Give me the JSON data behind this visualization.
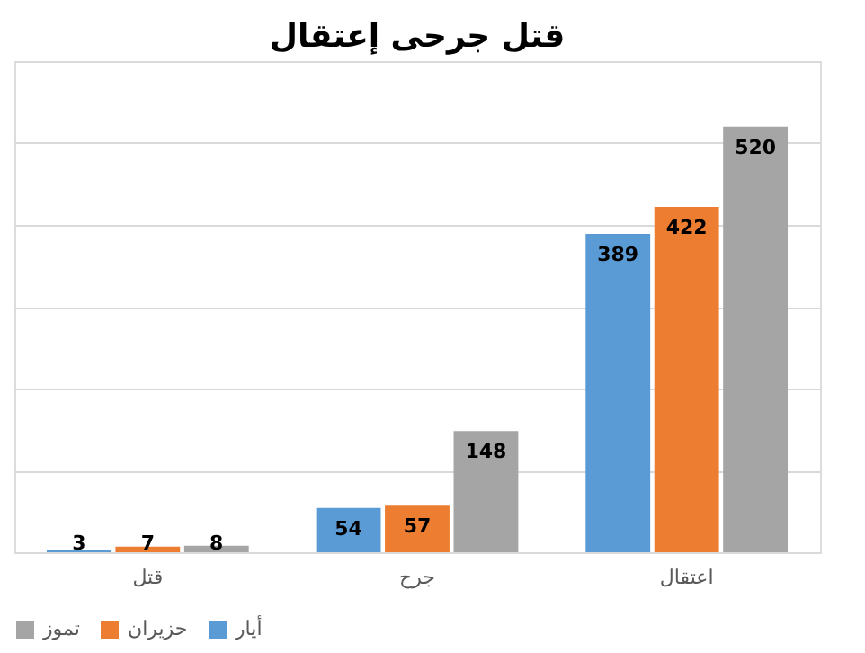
{
  "chart_data": {
    "type": "bar",
    "title": "قتل جرحى إعتقال",
    "categories": [
      "قتل",
      "جرح",
      "اعتقال"
    ],
    "series": [
      {
        "name": "أيار",
        "color": "#5b9bd5",
        "values": [
          3,
          54,
          389
        ]
      },
      {
        "name": "حزيران",
        "color": "#ed7d31",
        "values": [
          7,
          57,
          422
        ]
      },
      {
        "name": "تموز",
        "color": "#a5a5a5",
        "values": [
          8,
          148,
          520
        ]
      }
    ],
    "ylim": [
      0,
      600
    ],
    "yticks": [
      {
        "value": 0,
        "label": null
      },
      {
        "value": 100,
        "label": null
      },
      {
        "value": 200,
        "label": null
      },
      {
        "value": 300,
        "label": null
      },
      {
        "value": 400,
        "label": null
      },
      {
        "value": 500,
        "label": null
      },
      {
        "value": 600,
        "label": null
      }
    ],
    "tick_labels": "x",
    "grid": "y",
    "legend": "bottom",
    "data_labels": true
  }
}
